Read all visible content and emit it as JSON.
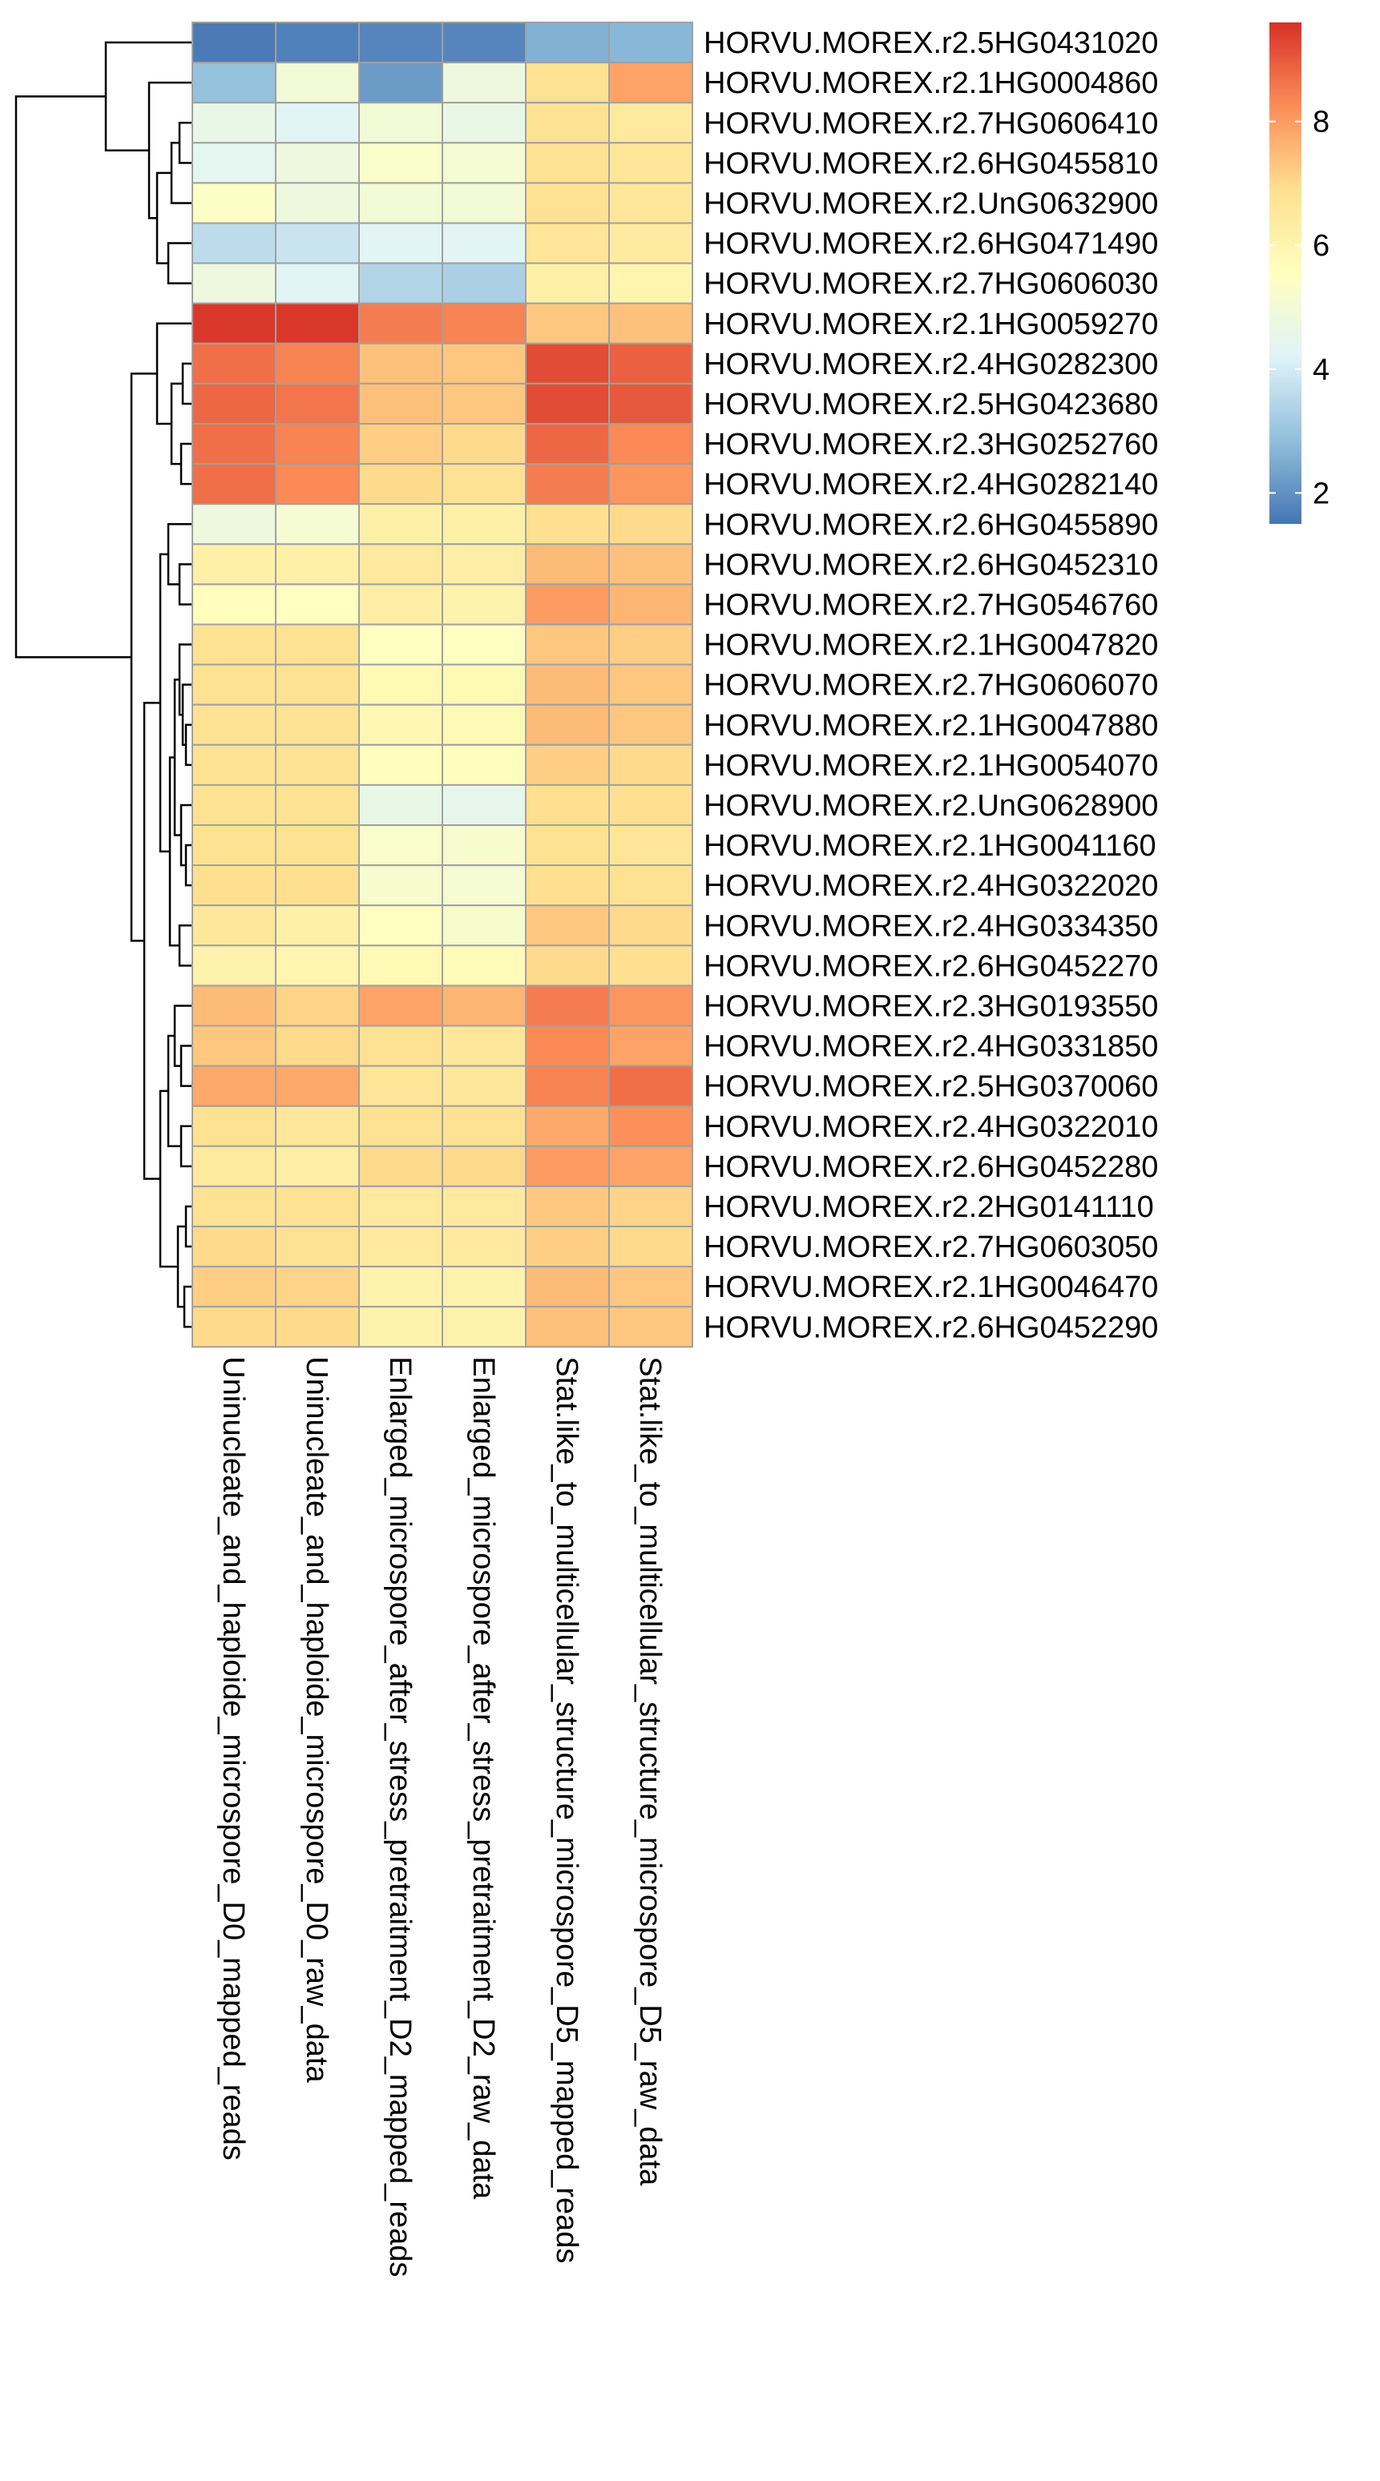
{
  "chart_data": {
    "type": "heatmap",
    "title": "",
    "columns": [
      "Uninucleate_and_haploide_microspore_D0_mapped_reads",
      "Uninucleate_and_haploide_microspore_D0_raw_data",
      "Enlarged_microspore_after_stress_pretraitment_D2_mapped_reads",
      "Enlarged_microspore_after_stress_pretraitment_D2_raw_data",
      "Stat.like_to_multicellular_structure_microspore_D5_mapped_reads",
      "Stat.like_to_multicellular_structure_microspore_D5_raw_data"
    ],
    "rows": [
      "HORVU.MOREX.r2.5HG0431020",
      "HORVU.MOREX.r2.1HG0004860",
      "HORVU.MOREX.r2.7HG0606410",
      "HORVU.MOREX.r2.6HG0455810",
      "HORVU.MOREX.r2.UnG0632900",
      "HORVU.MOREX.r2.6HG0471490",
      "HORVU.MOREX.r2.7HG0606030",
      "HORVU.MOREX.r2.1HG0059270",
      "HORVU.MOREX.r2.4HG0282300",
      "HORVU.MOREX.r2.5HG0423680",
      "HORVU.MOREX.r2.3HG0252760",
      "HORVU.MOREX.r2.4HG0282140",
      "HORVU.MOREX.r2.6HG0455890",
      "HORVU.MOREX.r2.6HG0452310",
      "HORVU.MOREX.r2.7HG0546760",
      "HORVU.MOREX.r2.1HG0047820",
      "HORVU.MOREX.r2.7HG0606070",
      "HORVU.MOREX.r2.1HG0047880",
      "HORVU.MOREX.r2.1HG0054070",
      "HORVU.MOREX.r2.UnG0628900",
      "HORVU.MOREX.r2.1HG0041160",
      "HORVU.MOREX.r2.4HG0322020",
      "HORVU.MOREX.r2.4HG0334350",
      "HORVU.MOREX.r2.6HG0452270",
      "HORVU.MOREX.r2.3HG0193550",
      "HORVU.MOREX.r2.4HG0331850",
      "HORVU.MOREX.r2.5HG0370060",
      "HORVU.MOREX.r2.4HG0322010",
      "HORVU.MOREX.r2.6HG0452280",
      "HORVU.MOREX.r2.2HG0141110",
      "HORVU.MOREX.r2.7HG0603050",
      "HORVU.MOREX.r2.1HG0046470",
      "HORVU.MOREX.r2.6HG0452290"
    ],
    "values": [
      [
        1.6,
        1.7,
        1.8,
        1.8,
        2.6,
        2.7
      ],
      [
        2.9,
        5.0,
        2.2,
        4.8,
        6.8,
        7.9
      ],
      [
        4.6,
        4.3,
        5.0,
        4.6,
        6.8,
        6.5
      ],
      [
        4.4,
        4.8,
        5.3,
        5.1,
        6.8,
        6.7
      ],
      [
        5.4,
        4.8,
        5.0,
        5.0,
        6.8,
        6.6
      ],
      [
        3.6,
        3.8,
        4.3,
        4.3,
        6.7,
        6.4
      ],
      [
        4.8,
        4.3,
        3.4,
        3.3,
        6.2,
        6.0
      ],
      [
        9.5,
        9.5,
        8.5,
        8.4,
        7.3,
        7.4
      ],
      [
        8.7,
        8.4,
        7.4,
        7.3,
        9.2,
        8.9
      ],
      [
        8.8,
        8.6,
        7.4,
        7.3,
        9.2,
        9.0
      ],
      [
        8.7,
        8.4,
        7.2,
        7.0,
        8.8,
        8.3
      ],
      [
        8.7,
        8.3,
        7.0,
        6.8,
        8.5,
        8.1
      ],
      [
        4.8,
        5.1,
        6.2,
        6.2,
        6.9,
        7.0
      ],
      [
        6.2,
        6.2,
        6.5,
        6.3,
        7.5,
        7.4
      ],
      [
        5.6,
        5.5,
        6.3,
        6.1,
        8.0,
        7.6
      ],
      [
        6.8,
        6.8,
        5.5,
        5.5,
        7.3,
        7.2
      ],
      [
        6.8,
        6.8,
        5.8,
        5.8,
        7.5,
        7.3
      ],
      [
        6.8,
        6.8,
        5.9,
        5.8,
        7.5,
        7.3
      ],
      [
        6.8,
        6.8,
        5.6,
        5.6,
        7.2,
        7.0
      ],
      [
        6.8,
        6.8,
        4.6,
        4.5,
        6.9,
        6.9
      ],
      [
        6.8,
        6.8,
        5.3,
        5.2,
        6.8,
        6.7
      ],
      [
        6.9,
        6.9,
        5.2,
        5.1,
        6.9,
        6.8
      ],
      [
        6.6,
        6.2,
        5.5,
        5.2,
        7.3,
        7.0
      ],
      [
        6.1,
        6.0,
        5.8,
        5.7,
        7.0,
        6.9
      ],
      [
        7.5,
        7.1,
        7.9,
        7.6,
        8.5,
        8.1
      ],
      [
        7.3,
        7.0,
        6.8,
        6.6,
        8.3,
        7.9
      ],
      [
        7.8,
        7.8,
        6.7,
        6.6,
        8.4,
        8.7
      ],
      [
        6.8,
        6.6,
        6.8,
        6.8,
        7.8,
        8.2
      ],
      [
        6.5,
        6.3,
        7.0,
        7.0,
        8.0,
        7.9
      ],
      [
        6.8,
        6.8,
        6.5,
        6.5,
        7.3,
        7.1
      ],
      [
        7.0,
        6.8,
        6.5,
        6.5,
        7.2,
        7.0
      ],
      [
        7.2,
        7.1,
        6.1,
        6.1,
        7.5,
        7.3
      ],
      [
        7.0,
        7.0,
        6.1,
        6.1,
        7.4,
        7.3
      ]
    ],
    "color_scale": {
      "colors": [
        "#4575b4",
        "#91bfdb",
        "#e0f3f8",
        "#ffffbf",
        "#fee090",
        "#fc8d59",
        "#d73027"
      ],
      "range": [
        1.5,
        9.6
      ],
      "ticks": [
        2,
        4,
        6,
        8
      ]
    },
    "legend_position": "right",
    "row_dendrogram": true,
    "cell_border_color": "#a0a0a0"
  }
}
